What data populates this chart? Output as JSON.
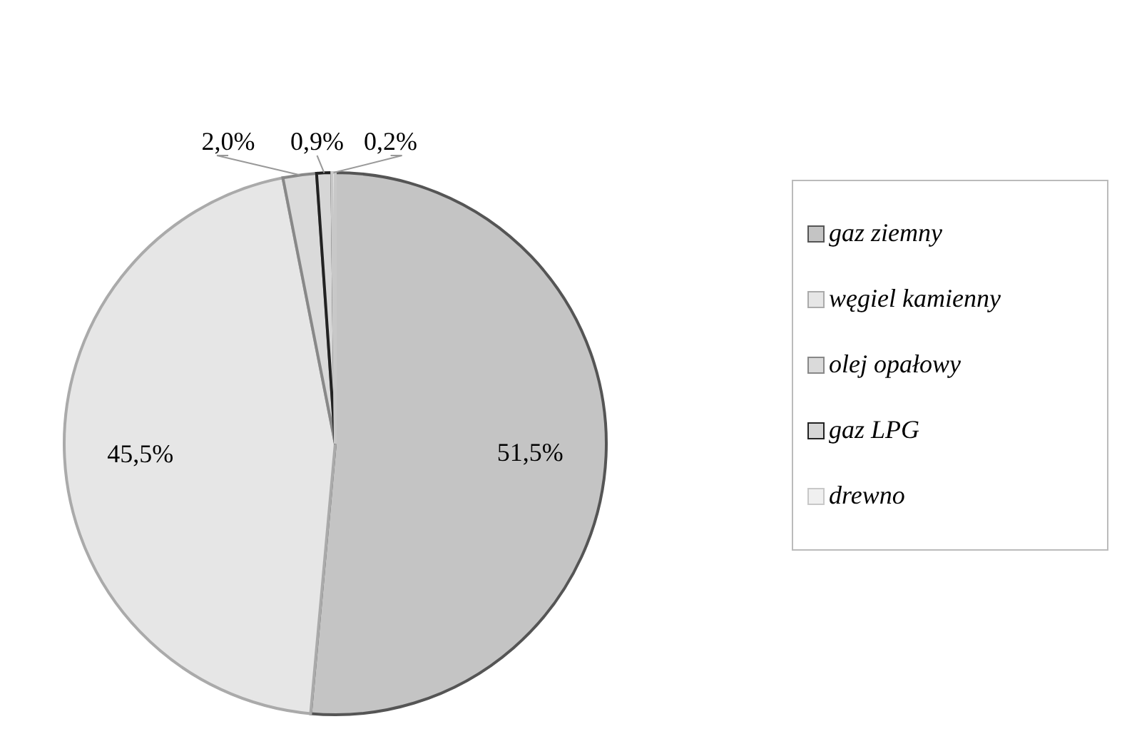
{
  "chart_data": {
    "type": "pie",
    "categories": [
      "gaz ziemny",
      "węgiel kamienny",
      "olej opałowy",
      "gaz LPG",
      "drewno"
    ],
    "values": [
      51.5,
      45.5,
      2.0,
      0.9,
      0.2
    ],
    "value_labels": [
      "51,5%",
      "45,5%",
      "2,0%",
      "0,9%",
      "0,2%"
    ],
    "colors": [
      "#c4c4c4",
      "#e6e6e6",
      "#dadada",
      "#d6d6d6",
      "#f0f0f0"
    ],
    "legend": "right"
  }
}
